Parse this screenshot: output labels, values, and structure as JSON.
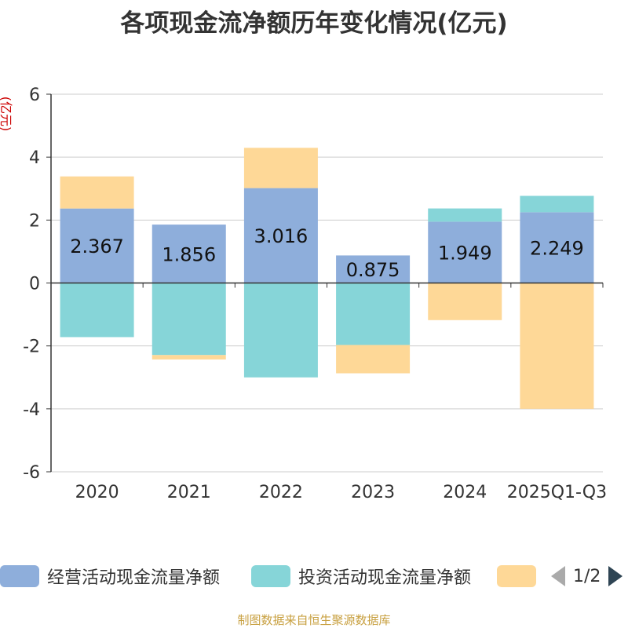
{
  "title": "各项现金流净额历年变化情况(亿元)",
  "source": "制图数据来自恒生聚源数据库",
  "chart_data": {
    "type": "bar",
    "stacked": true,
    "ylabel": "(亿元)",
    "ylim": [
      -6,
      6
    ],
    "yticks": [
      6,
      4,
      2,
      0,
      -2,
      -4,
      -6
    ],
    "grid": true,
    "categories": [
      "2020",
      "2021",
      "2022",
      "2023",
      "2024",
      "2025Q1-Q3"
    ],
    "series": [
      {
        "name": "经营活动现金流量净额",
        "color": "#8eaedb",
        "values": [
          2.367,
          1.856,
          3.016,
          0.875,
          1.949,
          2.249
        ],
        "show_labels": true
      },
      {
        "name": "投资活动现金流量净额",
        "color": "#86d5d8",
        "values": [
          -1.72,
          -2.29,
          -3.0,
          -1.97,
          0.42,
          0.52
        ],
        "show_labels": false
      },
      {
        "name": "",
        "color": "#fed897",
        "values": [
          1.02,
          -0.14,
          1.28,
          -0.9,
          -1.18,
          -4.0
        ],
        "show_labels": false
      }
    ],
    "legend_position": "bottom"
  },
  "legend": {
    "items": [
      {
        "label": "经营活动现金流量净额",
        "color": "#8eaedb"
      },
      {
        "label": "投资活动现金流量净额",
        "color": "#86d5d8"
      },
      {
        "label": "",
        "color": "#fed897"
      }
    ],
    "pager_text": "1/2"
  }
}
